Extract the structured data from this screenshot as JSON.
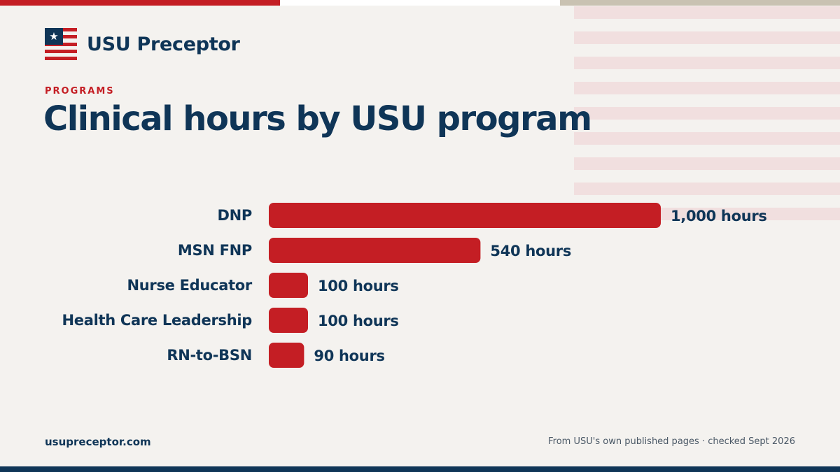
{
  "brand": {
    "name": "USU Preceptor",
    "logo_icon": "flag-icon"
  },
  "header": {
    "eyebrow": "PROGRAMS",
    "title": "Clinical hours by USU program"
  },
  "chart_data": {
    "type": "bar",
    "orientation": "horizontal",
    "title": "Clinical hours by USU program",
    "categories": [
      "DNP",
      "MSN FNP",
      "Nurse Educator",
      "Health Care Leadership",
      "RN-to-BSN"
    ],
    "values": [
      1000,
      540,
      100,
      100,
      90
    ],
    "value_labels": [
      "1,000 hours",
      "540 hours",
      "100 hours",
      "100 hours",
      "90 hours"
    ],
    "xlabel": "",
    "ylabel": "",
    "xlim": [
      0,
      1000
    ],
    "grid": false,
    "legend": "none",
    "bar_color": "#c41e24"
  },
  "footer": {
    "site": "usupreceptor.com",
    "source": "From USU's own published pages · checked Sept 2026"
  },
  "colors": {
    "navy": "#0f3557",
    "red": "#c41e24",
    "background": "#f4f2ef",
    "stripe": "#f1dfdf"
  }
}
